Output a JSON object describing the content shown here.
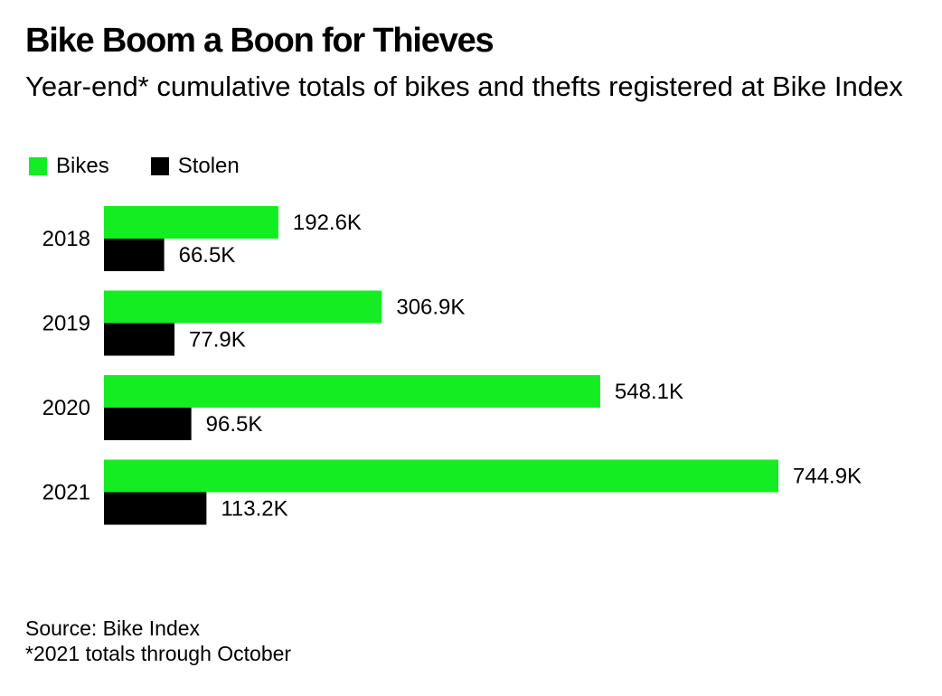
{
  "chart_data": {
    "type": "bar",
    "orientation": "horizontal",
    "title": "Bike Boom a Boon for Thieves",
    "subtitle": "Year-end* cumulative totals of bikes and thefts registered at Bike Index",
    "categories": [
      "2018",
      "2019",
      "2020",
      "2021"
    ],
    "series": [
      {
        "name": "Bikes",
        "color": "#13ED22",
        "values": [
          192.6,
          306.9,
          548.1,
          744.9
        ],
        "labels": [
          "192.6K",
          "306.9K",
          "548.1K",
          "744.9K"
        ]
      },
      {
        "name": "Stolen",
        "color": "#000000",
        "values": [
          66.5,
          77.9,
          96.5,
          113.2
        ],
        "labels": [
          "66.5K",
          "77.9K",
          "96.5K",
          "113.2K"
        ]
      }
    ],
    "unit": "thousands",
    "xlim": [
      0,
      744.9
    ],
    "grid": false,
    "legend_position": "top-left"
  },
  "footer": {
    "source": "Source: Bike Index",
    "note": "*2021 totals through October"
  }
}
